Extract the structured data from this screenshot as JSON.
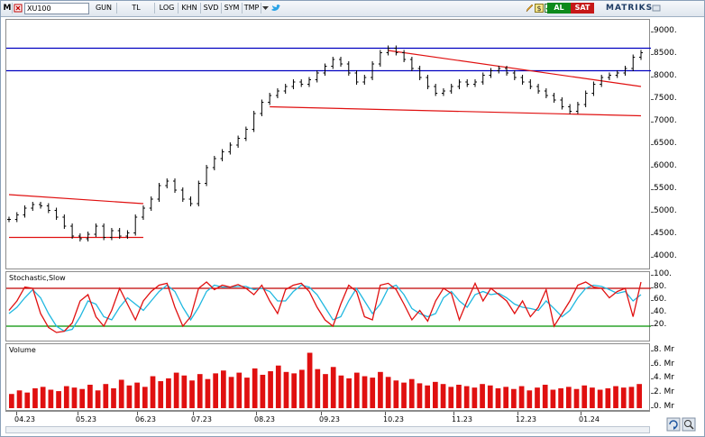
{
  "toolbar": {
    "menu_letter": "M",
    "symbol": "XU100",
    "period": "GUN",
    "currency": "TL",
    "buttons": [
      "LOG",
      "KHN",
      "SVD",
      "SYM",
      "TMP"
    ],
    "buy_label": "AL",
    "sell_label": "SAT",
    "brand": "MATRIKS",
    "icons": [
      "pencil-icon",
      "dollar-icon",
      "checkbox-icon",
      "twitter-icon"
    ]
  },
  "price_panel": {
    "yticks": [
      "9000.",
      "8500.",
      "8000.",
      "7500.",
      "7000.",
      "6500.",
      "6000.",
      "5500.",
      "5000.",
      "4500.",
      "4000."
    ]
  },
  "stoch_panel": {
    "title": "Stochastic,Slow",
    "yticks": [
      "100.",
      "80.",
      "60.",
      "40.",
      "20."
    ]
  },
  "volume_panel": {
    "title": "Volume",
    "yticks": [
      "8. Mr",
      "6. Mr",
      "4. Mr",
      "2. Mr",
      "0. Mr"
    ]
  },
  "xaxis": {
    "labels": [
      "04.23",
      "05.23",
      "06.23",
      "07.23",
      "08.23",
      "09.23",
      "10.23",
      "11.23",
      "12.23",
      "01.24"
    ]
  },
  "colors": {
    "price_bars": "#000000",
    "support_line": "#0000c0",
    "trend_line": "#e01010",
    "stoch_k": "#e01010",
    "stoch_d": "#20b8e0",
    "stoch_upper": "#c00000",
    "stoch_lower": "#009000",
    "volume_bars": "#e01010"
  },
  "chart_data": [
    {
      "type": "line",
      "title": "XU100",
      "series": [
        {
          "name": "XU100",
          "values": [
            4850,
            4950,
            5100,
            5180,
            5150,
            5050,
            4900,
            4700,
            4480,
            4420,
            4520,
            4700,
            4450,
            4600,
            4480,
            4550,
            4900,
            5100,
            5300,
            5600,
            5700,
            5500,
            5300,
            5200,
            5650,
            6000,
            6200,
            6350,
            6500,
            6650,
            6850,
            7200,
            7450,
            7600,
            7700,
            7800,
            7900,
            7850,
            7950,
            8100,
            8250,
            8400,
            8300,
            8100,
            7900,
            8000,
            8300,
            8550,
            8650,
            8550,
            8400,
            8200,
            8000,
            7800,
            7650,
            7700,
            7800,
            7900,
            7850,
            7900,
            8050,
            8150,
            8200,
            8100,
            8000,
            7900,
            7800,
            7700,
            7600,
            7500,
            7350,
            7250,
            7400,
            7650,
            7850,
            8000,
            8050,
            8100,
            8200,
            8450,
            8550
          ]
        }
      ],
      "ylim": [
        3800,
        9200
      ],
      "hlines": [
        8650,
        8150
      ],
      "trendlines": [
        {
          "from": [
            0,
            5400
          ],
          "to": [
            17,
            5200
          ]
        },
        {
          "from": [
            0,
            4450
          ],
          "to": [
            17,
            4450
          ]
        },
        {
          "from": [
            33,
            7350
          ],
          "to": [
            80,
            7150
          ]
        },
        {
          "from": [
            48,
            8600
          ],
          "to": [
            80,
            7800
          ]
        }
      ]
    },
    {
      "type": "line",
      "title": "Stochastic,Slow",
      "series": [
        {
          "name": "%K",
          "values": [
            45,
            60,
            82,
            80,
            40,
            18,
            10,
            12,
            25,
            60,
            70,
            35,
            20,
            45,
            80,
            55,
            30,
            60,
            75,
            85,
            88,
            50,
            20,
            35,
            80,
            90,
            78,
            85,
            82,
            86,
            80,
            70,
            85,
            60,
            40,
            78,
            85,
            88,
            75,
            50,
            30,
            20,
            55,
            85,
            75,
            35,
            30,
            85,
            88,
            78,
            55,
            30,
            45,
            28,
            60,
            80,
            72,
            30,
            60,
            88,
            60,
            80,
            70,
            60,
            40,
            60,
            35,
            50,
            78,
            20,
            40,
            60,
            85,
            90,
            82,
            80,
            65,
            75,
            80,
            35,
            90
          ]
        },
        {
          "name": "%D",
          "values": [
            40,
            50,
            65,
            78,
            65,
            40,
            20,
            12,
            15,
            35,
            60,
            55,
            35,
            30,
            50,
            65,
            55,
            45,
            60,
            75,
            85,
            75,
            50,
            30,
            50,
            75,
            85,
            82,
            82,
            83,
            83,
            78,
            80,
            75,
            60,
            60,
            75,
            85,
            82,
            70,
            50,
            30,
            35,
            60,
            80,
            60,
            40,
            55,
            80,
            85,
            70,
            48,
            40,
            35,
            40,
            65,
            75,
            60,
            50,
            70,
            75,
            70,
            72,
            65,
            55,
            50,
            48,
            45,
            60,
            48,
            35,
            45,
            65,
            80,
            85,
            83,
            78,
            72,
            75,
            60,
            70
          ]
        }
      ],
      "ylim": [
        0,
        100
      ],
      "hlines": [
        80,
        20
      ]
    },
    {
      "type": "bar",
      "title": "Volume",
      "series": [
        {
          "name": "Volume",
          "values": [
            2.0,
            2.5,
            2.2,
            2.8,
            3.0,
            2.6,
            2.4,
            3.1,
            2.9,
            2.7,
            3.3,
            2.5,
            3.4,
            2.8,
            4.0,
            3.2,
            3.6,
            3.0,
            4.5,
            3.8,
            4.2,
            5.0,
            4.6,
            3.9,
            4.8,
            4.1,
            4.9,
            5.3,
            4.4,
            5.0,
            4.3,
            5.6,
            4.7,
            5.2,
            6.0,
            5.1,
            4.9,
            5.4,
            7.8,
            5.5,
            4.8,
            5.8,
            4.6,
            4.2,
            5.0,
            4.5,
            4.3,
            5.1,
            4.4,
            3.9,
            3.6,
            4.1,
            3.5,
            3.2,
            3.7,
            3.4,
            3.0,
            3.3,
            3.1,
            2.9,
            3.4,
            3.2,
            2.8,
            3.0,
            2.7,
            3.1,
            2.5,
            2.9,
            3.3,
            2.6,
            2.8,
            3.0,
            2.7,
            3.2,
            2.9,
            2.6,
            2.8,
            3.1,
            2.9,
            3.0,
            3.4
          ]
        }
      ],
      "ylim": [
        0,
        8.5
      ]
    }
  ]
}
